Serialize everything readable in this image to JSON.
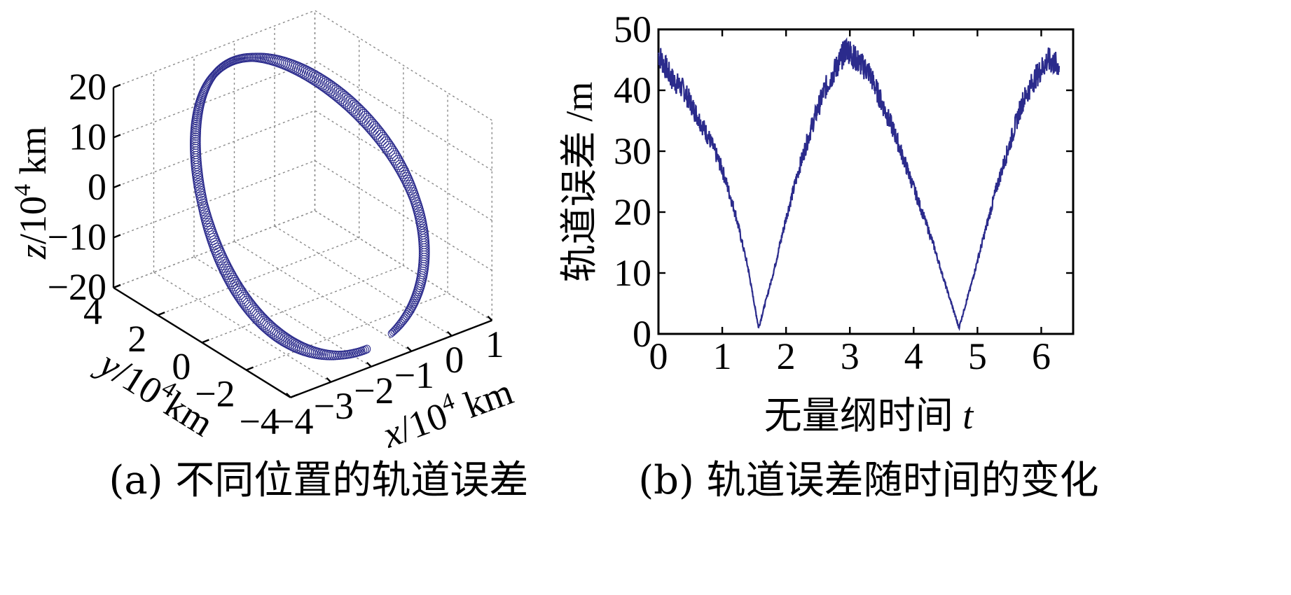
{
  "colors": {
    "series": "#2b2b8c",
    "axis": "#000000",
    "grid": "#8a8a8a"
  },
  "chart_data": [
    {
      "type": "scatter",
      "projection": "3d",
      "caption": "(a) 不同位置的轨道误差",
      "xlabel_var": "x",
      "xlabel": "x/10⁴ km",
      "ylabel_var": "y",
      "ylabel": "y/10⁴ km",
      "zlabel_var": "z",
      "zlabel": "z/10⁴ km",
      "xlim": [
        -4,
        1
      ],
      "ylim": [
        -4,
        4
      ],
      "zlim": [
        -20,
        20
      ],
      "xticks": [
        "-4",
        "-3",
        "-2",
        "-1",
        "0",
        "1"
      ],
      "yticks": [
        "-4",
        "-2",
        "0",
        "2",
        "4"
      ],
      "zticks": [
        "-20",
        "-10",
        "0",
        "10",
        "20"
      ],
      "grid": true,
      "marker": "circle",
      "marker_size_meaning": "orbit error magnitude",
      "trajectory": {
        "x_range": [
          -3.5,
          0.5
        ],
        "y_range": [
          -4,
          4
        ],
        "z_range": [
          -17,
          18
        ]
      }
    },
    {
      "type": "line",
      "caption": "(b) 轨道误差随时间的变化",
      "xlabel_text": "无量纲时间",
      "xlabel_var": "t",
      "ylabel": "轨道误差 /m",
      "xlim": [
        0,
        6.5
      ],
      "ylim": [
        0,
        50
      ],
      "xticks": [
        "0",
        "1",
        "2",
        "3",
        "4",
        "5",
        "6"
      ],
      "yticks": [
        "0",
        "10",
        "20",
        "30",
        "40",
        "50"
      ],
      "grid": false,
      "series": [
        {
          "x": [
            0,
            0.2,
            0.4,
            0.6,
            0.8,
            1.0,
            1.2,
            1.4,
            1.57,
            1.8,
            2.0,
            2.2,
            2.4,
            2.6,
            2.8,
            2.95,
            3.1,
            3.3,
            3.5,
            3.7,
            3.9,
            4.1,
            4.3,
            4.5,
            4.71,
            4.9,
            5.1,
            5.3,
            5.5,
            5.7,
            5.9,
            6.1,
            6.28
          ],
          "y": [
            46,
            42,
            40,
            36,
            32,
            27,
            20,
            11,
            1,
            10,
            19,
            27,
            34,
            40,
            44,
            47,
            45,
            43,
            38,
            33,
            27,
            21,
            15,
            8,
            1,
            8,
            16,
            24,
            31,
            38,
            42,
            45,
            44
          ]
        }
      ]
    }
  ]
}
